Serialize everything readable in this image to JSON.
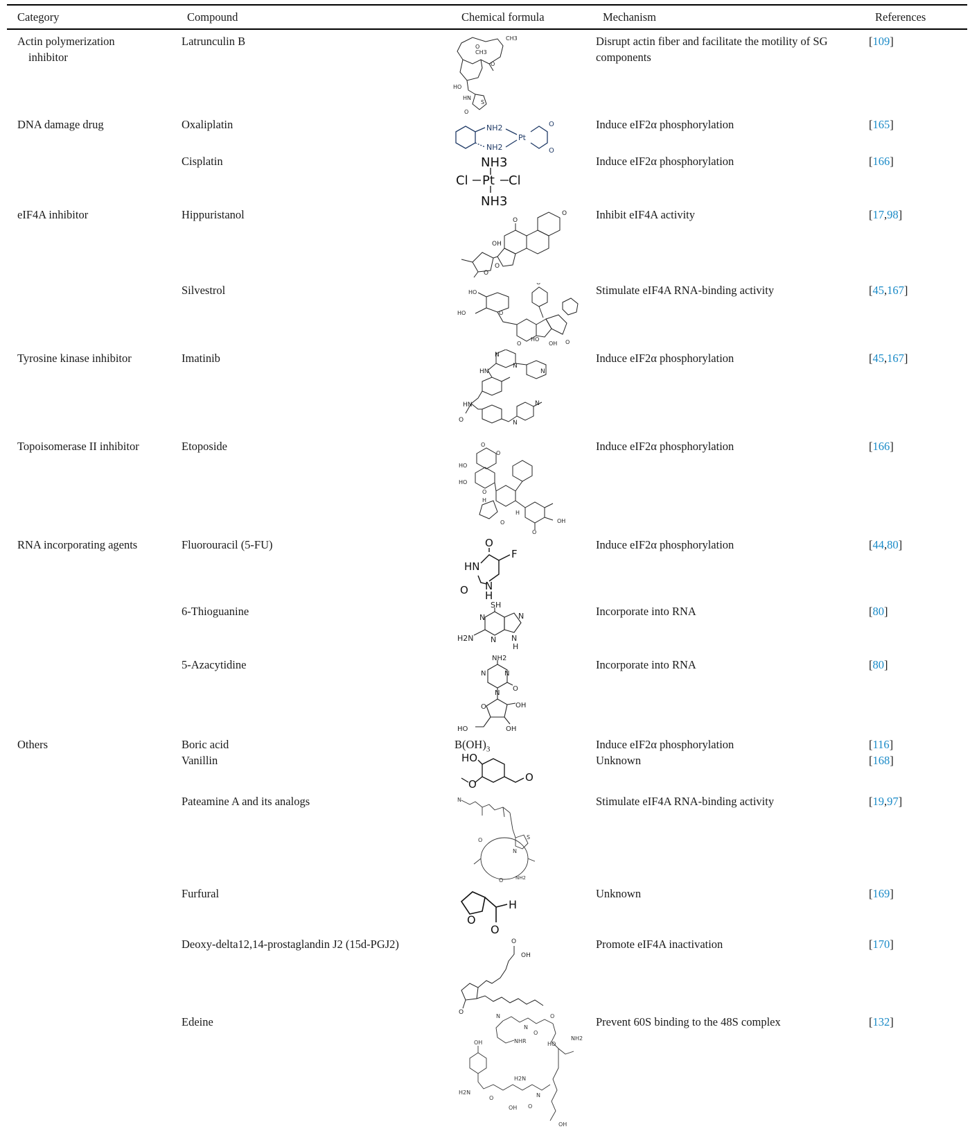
{
  "header": {
    "category": "Category",
    "compound": "Compound",
    "formula": "Chemical formula",
    "mechanism": "Mechanism",
    "references": "References"
  },
  "rows": [
    {
      "category": "Actin polymerization",
      "category_cont": "inhibitor",
      "compound": "Latrunculin B",
      "mechanism": "Disrupt actin fiber and facilitate the motility of SG",
      "mechanism_cont": "components",
      "refs": [
        "109"
      ]
    },
    {
      "category": "DNA damage drug",
      "compound": "Oxaliplatin",
      "mechanism": "Induce eIF2α phosphorylation",
      "refs": [
        "165"
      ]
    },
    {
      "category": "",
      "compound": "Cisplatin",
      "mechanism": "Induce eIF2α phosphorylation",
      "refs": [
        "166"
      ]
    },
    {
      "category": "eIF4A inhibitor",
      "compound": "Hippuristanol",
      "mechanism": "Inhibit eIF4A activity",
      "refs": [
        "17",
        "98"
      ]
    },
    {
      "category": "",
      "compound": "Silvestrol",
      "mechanism": "Stimulate eIF4A RNA-binding activity",
      "refs": [
        "45",
        "167"
      ]
    },
    {
      "category": "Tyrosine kinase inhibitor",
      "compound": "Imatinib",
      "mechanism": "Induce eIF2α phosphorylation",
      "refs": [
        "45",
        "167"
      ]
    },
    {
      "category": "Topoisomerase II inhibitor",
      "compound": "Etoposide",
      "mechanism": "Induce eIF2α phosphorylation",
      "refs": [
        "166"
      ]
    },
    {
      "category": "RNA incorporating agents",
      "compound": "Fluorouracil (5-FU)",
      "mechanism": "Induce eIF2α phosphorylation",
      "refs": [
        "44",
        "80"
      ]
    },
    {
      "category": "",
      "compound": "6-Thioguanine",
      "mechanism": "Incorporate into RNA",
      "refs": [
        "80"
      ]
    },
    {
      "category": "",
      "compound": "5-Azacytidine",
      "mechanism": "Incorporate into RNA",
      "refs": [
        "80"
      ]
    },
    {
      "category": "Others",
      "compound": "Boric acid",
      "mechanism": "Induce eIF2α phosphorylation",
      "refs": [
        "116"
      ]
    },
    {
      "category": "",
      "compound": "Vanillin",
      "mechanism": "Unknown",
      "refs": [
        "168"
      ]
    },
    {
      "category": "",
      "compound": "Pateamine A and its analogs",
      "mechanism": "Stimulate eIF4A RNA-binding activity",
      "refs": [
        "19",
        "97"
      ]
    },
    {
      "category": "",
      "compound": "Furfural",
      "mechanism": "Unknown",
      "refs": [
        "169"
      ]
    },
    {
      "category": "",
      "compound": "Deoxy-delta12,14-prostaglandin J2 (15d-PGJ2)",
      "mechanism": "Promote eIF4A inactivation",
      "refs": [
        "170"
      ]
    },
    {
      "category": "",
      "compound": "Edeine",
      "mechanism": "Prevent 60S binding to the 48S complex",
      "refs": [
        "132"
      ]
    }
  ],
  "formulas": {
    "boric_acid_main": "B(OH)",
    "boric_acid_sub": "3",
    "latrunculin_labels": [
      "CH3",
      "CH3",
      "O",
      "O",
      "HO",
      "HN",
      "S",
      "O"
    ],
    "oxaliplatin_labels": [
      "NH2",
      "NH2",
      "Pt",
      "O",
      "O"
    ],
    "cisplatin_labels": [
      "NH3",
      "Cl",
      "Pt",
      "Cl",
      "NH3"
    ],
    "hippuristanol_labels": [
      "O",
      "O",
      "OH",
      "O",
      "O"
    ],
    "silvestrol_labels": [
      "HO",
      "HO",
      "O",
      "O",
      "O",
      "HO",
      "OH",
      "O"
    ],
    "imatinib_labels": [
      "N",
      "N",
      "HN",
      "N",
      "HN",
      "O",
      "N",
      "N"
    ],
    "etoposide_labels": [
      "O",
      "O",
      "HO",
      "HO",
      "O",
      "H",
      "H",
      "O",
      "OH",
      "O"
    ],
    "fluorouracil_labels": [
      "O",
      "F",
      "HN",
      "O",
      "N",
      "H"
    ],
    "thioguanine_labels": [
      "SH",
      "N",
      "N",
      "N",
      "H2N",
      "N",
      "H"
    ],
    "azacytidine_labels": [
      "NH2",
      "N",
      "N",
      "N",
      "O",
      "O",
      "OH",
      "HO",
      "OH"
    ],
    "vanillin_labels": [
      "HO",
      "O",
      "O"
    ],
    "pateamine_labels": [
      "N",
      "O",
      "S",
      "N",
      "O",
      "NH2"
    ],
    "furfural_labels": [
      "O",
      "H",
      "O"
    ],
    "pgj2_labels": [
      "O",
      "OH",
      "O"
    ],
    "edeine_labels": [
      "N",
      "N",
      "O",
      "NHR",
      "O",
      "HO",
      "NH2",
      "OH",
      "H2N",
      "H2N",
      "O",
      "N",
      "OH",
      "O",
      "OH"
    ]
  }
}
